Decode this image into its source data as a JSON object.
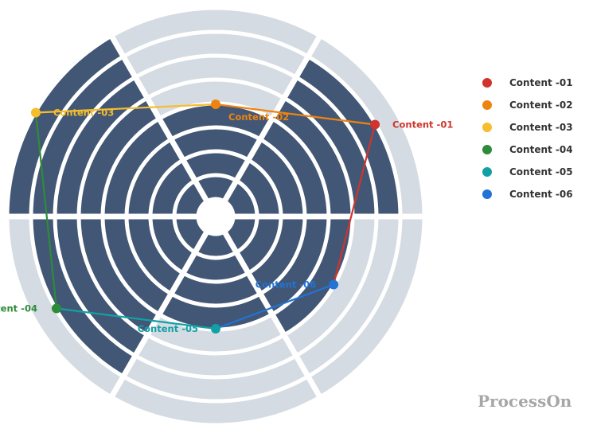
{
  "chart_data": {
    "type": "radar",
    "rings": 8,
    "axes": [
      "Content -01",
      "Content -02",
      "Content -03",
      "Content -04",
      "Content -05",
      "Content -06"
    ],
    "values": [
      7,
      4,
      8,
      7,
      4,
      5
    ],
    "colors": {
      "empty_segment": "#d5dbe2",
      "filled_segment": "#425775",
      "background": "#ffffff"
    },
    "series": [
      {
        "label": "Content -01",
        "color": "#d0342c"
      },
      {
        "label": "Content -02",
        "color": "#ee8410"
      },
      {
        "label": "Content -03",
        "color": "#f6bd2c"
      },
      {
        "label": "Content -04",
        "color": "#2e8b3a"
      },
      {
        "label": "Content -05",
        "color": "#13a0a5"
      },
      {
        "label": "Content -06",
        "color": "#2273d4"
      }
    ],
    "legend_position": "right"
  },
  "watermark": "ProcessOn"
}
